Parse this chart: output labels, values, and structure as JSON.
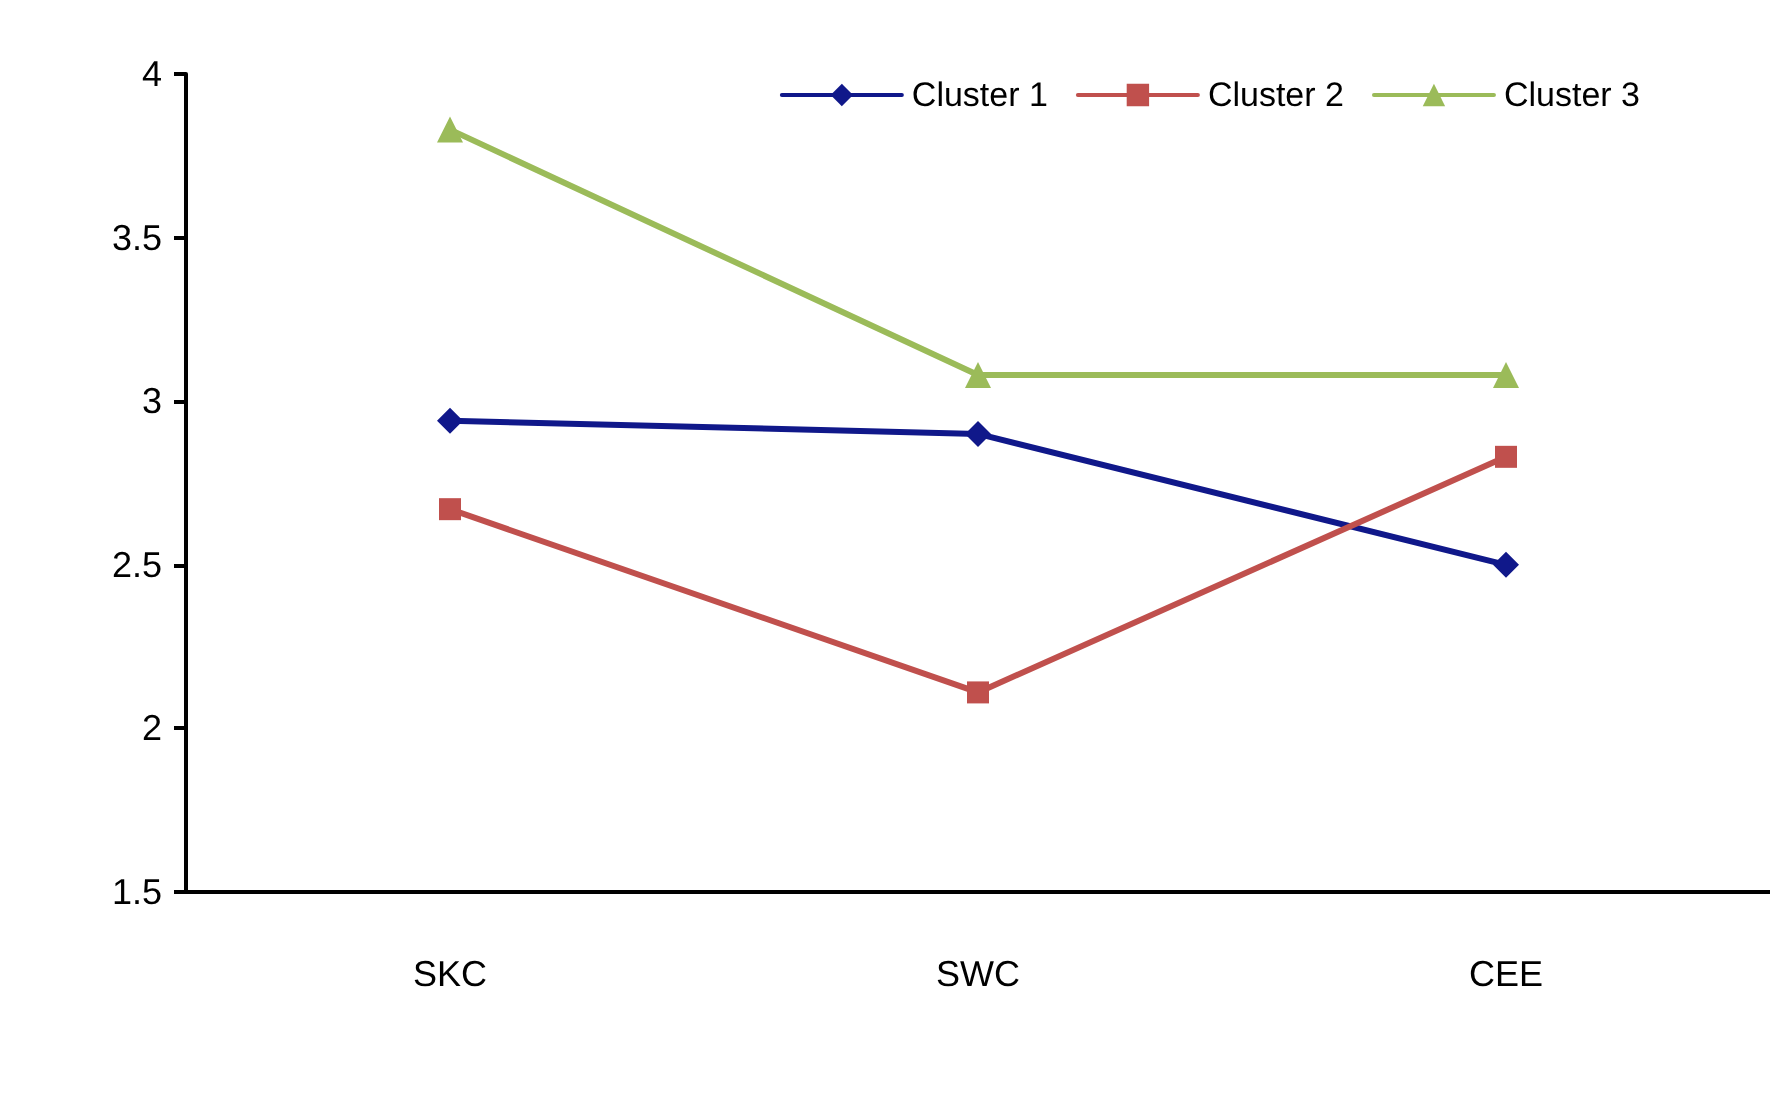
{
  "chart_data": {
    "type": "line",
    "categories": [
      "SKC",
      "SWC",
      "CEE"
    ],
    "series": [
      {
        "name": "Cluster 1",
        "color": "#10188a",
        "marker": "diamond",
        "values": [
          2.94,
          2.9,
          2.5
        ]
      },
      {
        "name": "Cluster 2",
        "color": "#c0504d",
        "marker": "square",
        "values": [
          2.67,
          2.11,
          2.83
        ]
      },
      {
        "name": "Cluster 3",
        "color": "#9bbb59",
        "marker": "triangle",
        "values": [
          3.83,
          3.08,
          3.08
        ]
      }
    ],
    "ylim": [
      1.5,
      4
    ],
    "yticks": [
      1.5,
      2,
      2.5,
      3,
      3.5,
      4
    ],
    "grid": false,
    "legend": "top right",
    "line_style": "solid"
  }
}
